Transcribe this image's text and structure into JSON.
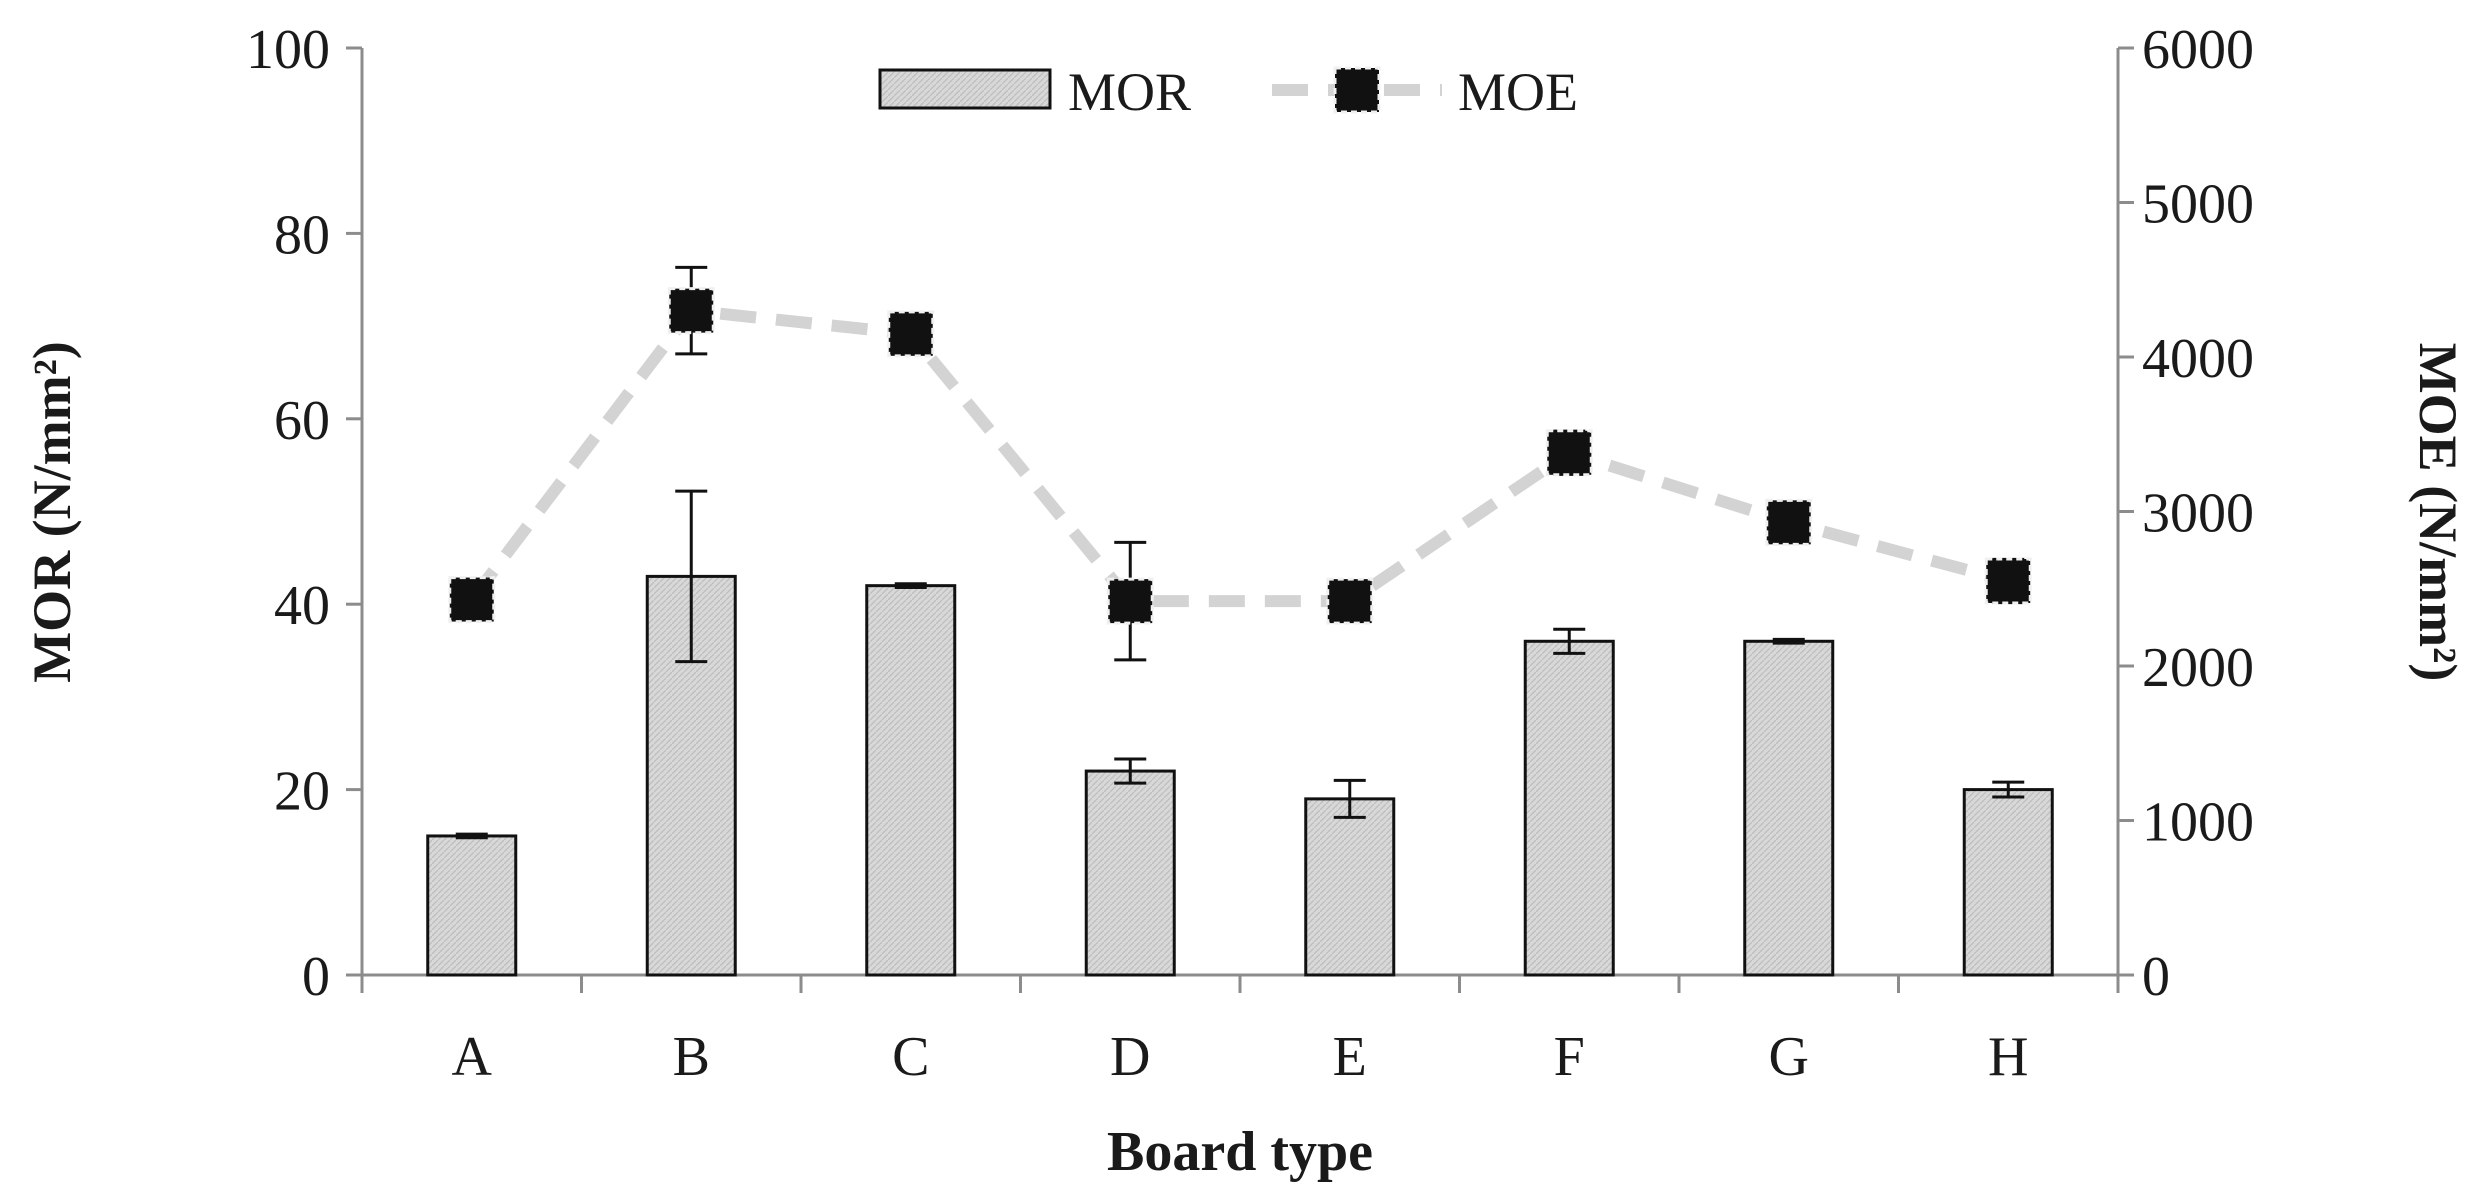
{
  "chart_data": {
    "type": "bar",
    "categories": [
      "A",
      "B",
      "C",
      "D",
      "E",
      "F",
      "G",
      "H"
    ],
    "xlabel": "Board type",
    "ylabel_left": "MOR (N/mm²)",
    "ylabel_right": "MOE (N/mm²)",
    "ylim_left": [
      0,
      100
    ],
    "ylim_right": [
      0,
      6000
    ],
    "yticks_left": [
      "0",
      "20",
      "40",
      "60",
      "80",
      "100"
    ],
    "yticks_right": [
      "0",
      "1000",
      "2000",
      "3000",
      "4000",
      "5000",
      "6000"
    ],
    "legend_position": "top-center",
    "grid": false,
    "series": [
      {
        "name": "MOR",
        "type": "bar",
        "axis": "left",
        "values": [
          15,
          43,
          42,
          22,
          19,
          36,
          36,
          20
        ],
        "errors": [
          0.2,
          9.2,
          0.2,
          1.3,
          2.0,
          1.3,
          0.2,
          0.8
        ]
      },
      {
        "name": "MOE",
        "type": "line",
        "axis": "right",
        "values": [
          2430,
          4300,
          4150,
          2420,
          2420,
          3380,
          2930,
          2550
        ],
        "errors": [
          80,
          280,
          70,
          380,
          70,
          140,
          80,
          140
        ]
      }
    ],
    "colors": {
      "bar_fill": "#d6d6d6",
      "bar_stroke": "#111111",
      "line": "#d3d3d3",
      "marker": "#111111",
      "axis": "#8c8c8c"
    }
  }
}
